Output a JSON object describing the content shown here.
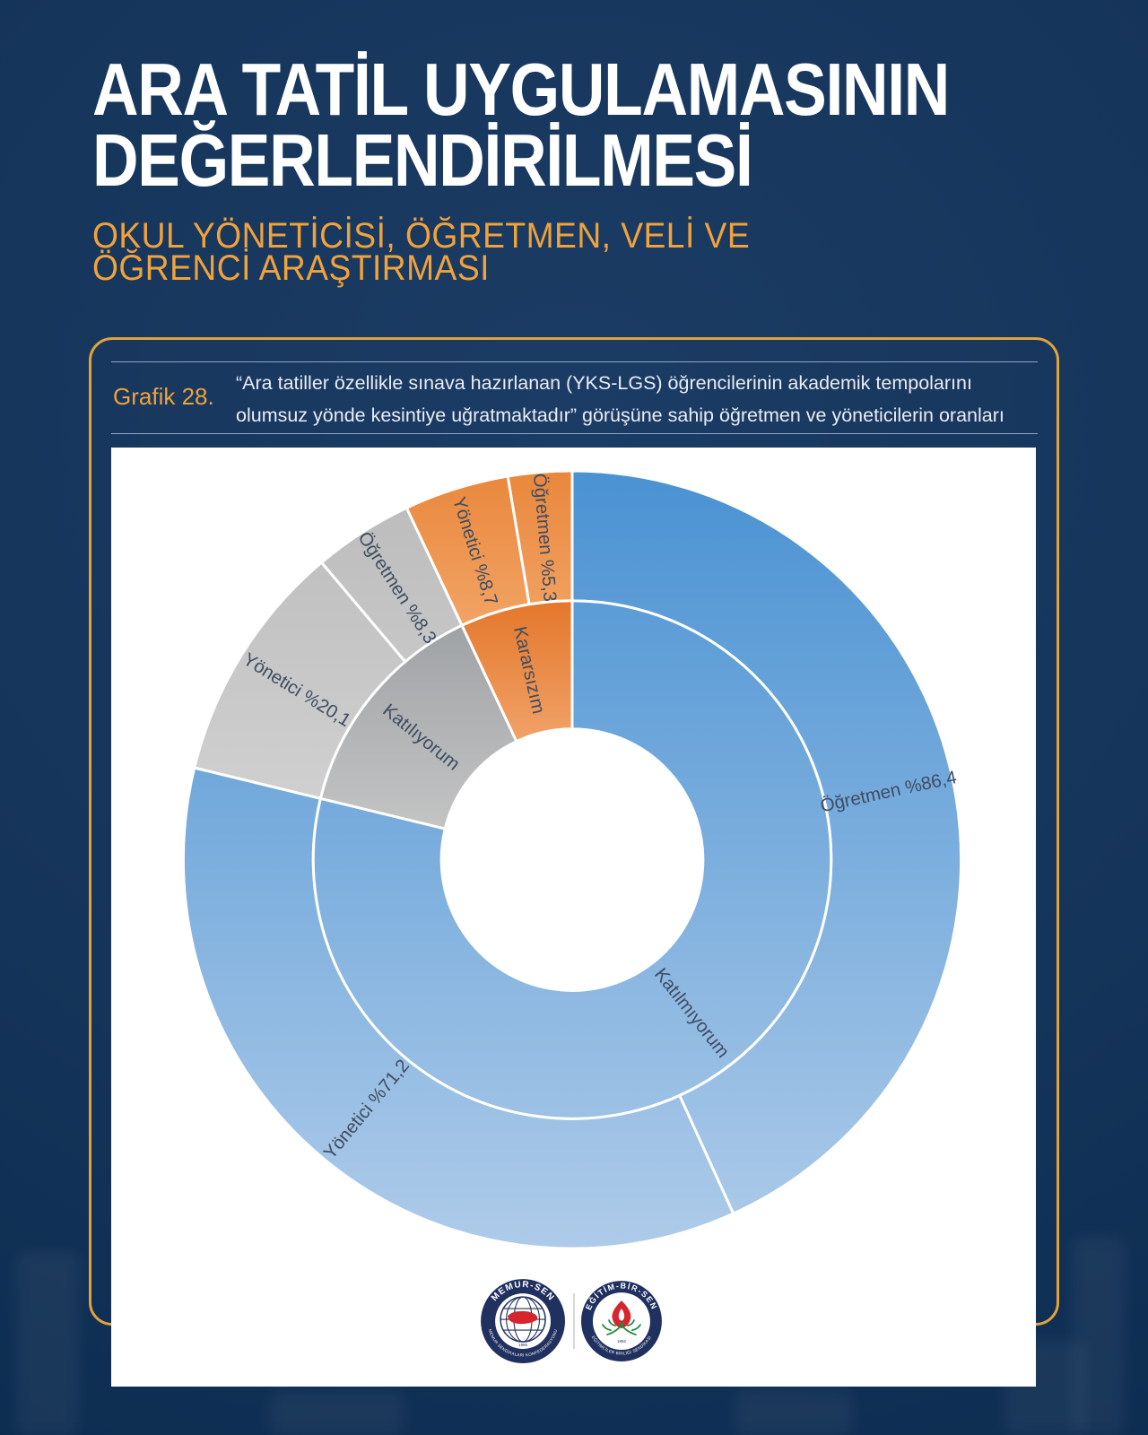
{
  "page": {
    "title_line1": "ARA TATİL UYGULAMASININ",
    "title_line2": "DEĞERLENDİRİLMESİ",
    "subtitle_line1": "OKUL YÖNETİCİSİ, ÖĞRETMEN, VELİ VE",
    "subtitle_line2": "ÖĞRENCİ ARAŞTIRMASI"
  },
  "card": {
    "grafik_label": "Grafik 28.",
    "description_line1": "“Ara tatiller özellikle sınava hazırlanan (YKS-LGS) öğrencilerinin akademik tempolarını",
    "description_line2": "olumsuz yönde kesintiye uğratmaktadır” görüşüne sahip öğretmen ve yöneticilerin oranları"
  },
  "theme": {
    "background_navy": "#143459",
    "accent_orange": "#F0A23C",
    "card_border": "#E1A33C",
    "title_color": "#FFFFFF",
    "description_color": "#E9EDF4",
    "chart_background": "#FFFFFF"
  },
  "chart_data": {
    "type": "sunburst",
    "title": "Grafik 28 — öğretmen ve yöneticilerin görüş oranları",
    "units": "percent",
    "inner_ring": [
      {
        "label": "Katılmıyorum",
        "color": "blue"
      },
      {
        "label": "Katılıyorum",
        "color": "gray"
      },
      {
        "label": "Kararsızım",
        "color": "orange"
      }
    ],
    "outer_ring": [
      {
        "label": "Öğretmen %86,4",
        "group": "Öğretmen",
        "category": "Katılmıyorum",
        "value": 86.4,
        "color": "blue"
      },
      {
        "label": "Yönetici %71,2",
        "group": "Yönetici",
        "category": "Katılmıyorum",
        "value": 71.2,
        "color": "blue"
      },
      {
        "label": "Yönetici %20,1",
        "group": "Yönetici",
        "category": "Katılıyorum",
        "value": 20.1,
        "color": "gray"
      },
      {
        "label": "Öğretmen %8,3",
        "group": "Öğretmen",
        "category": "Katılıyorum",
        "value": 8.3,
        "color": "gray"
      },
      {
        "label": "Yönetici %8,7",
        "group": "Yönetici",
        "category": "Kararsızım",
        "value": 8.7,
        "color": "orange"
      },
      {
        "label": "Öğretmen %5,3",
        "group": "Öğretmen",
        "category": "Kararsızım",
        "value": 5.3,
        "color": "orange"
      }
    ],
    "series": [
      {
        "name": "Öğretmen",
        "values": {
          "Katılmıyorum": 86.4,
          "Katılıyorum": 8.3,
          "Kararsızım": 5.3
        }
      },
      {
        "name": "Yönetici",
        "values": {
          "Katılmıyorum": 71.2,
          "Katılıyorum": 20.1,
          "Kararsızım": 8.7
        }
      }
    ],
    "colors": {
      "blue_top": "#4A92D3",
      "blue_bottom": "#AECBE9",
      "orange_outer_top": "#E9873C",
      "orange_outer_bottom": "#F4A96D",
      "orange_inner_top": "#E4762A",
      "orange_inner_bottom": "#F0A065",
      "gray_outer_top": "#BCBCBC",
      "gray_outer_bottom": "#D0D0D0",
      "gray_inner_top": "#9FA2A5",
      "gray_inner_bottom": "#C7C7C7",
      "label": "#3E4C61",
      "separator": "#FFFFFF"
    },
    "layout": {
      "start_angle_deg": 0,
      "direction": "clockwise",
      "ring_scale": "each series spans half circle (value/200*360deg)"
    }
  },
  "logos": {
    "memursen": {
      "name": "MEMUR-SEN",
      "subtitle": "MEMUR SENDİKALARI KONFEDERASYONU",
      "year": "1995"
    },
    "egitimbirsen": {
      "name": "EĞİTİM-BİR-SEN",
      "subtitle": "EĞİTİMCİLER BİRLİĞİ SENDİKASI",
      "year": "1992"
    }
  }
}
